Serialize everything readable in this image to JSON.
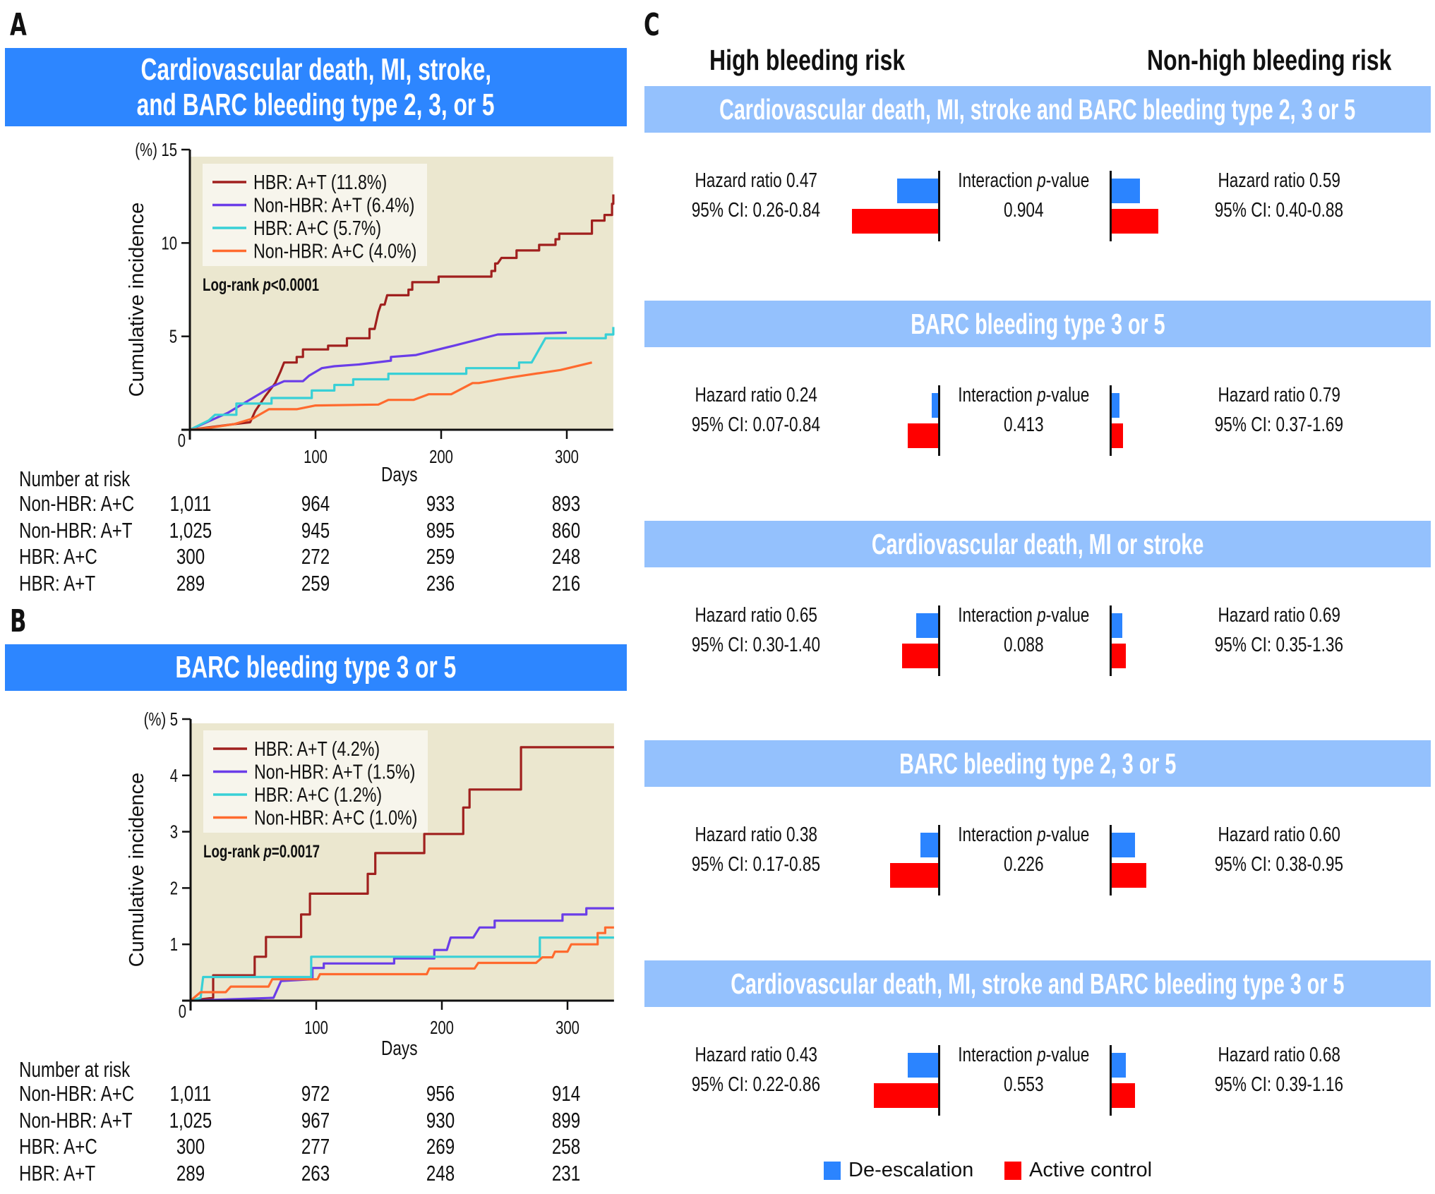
{
  "panels": {
    "a": {
      "letter": "A",
      "title_line1": "Cardiovascular death, MI, stroke,",
      "title_line2": "and BARC bleeding type 2, 3, or 5"
    },
    "b": {
      "letter": "B",
      "title_line1": "BARC bleeding type 3 or 5"
    },
    "c": {
      "letter": "C",
      "col_left": "High bleeding risk",
      "col_right": "Non-high bleeding risk"
    }
  },
  "risk_tables": {
    "a": {
      "title": "Number at risk",
      "days_label": "Days",
      "rows": [
        {
          "label": "Non-HBR: A+C",
          "values": [
            "1,011",
            "964",
            "933",
            "893"
          ]
        },
        {
          "label": "Non-HBR: A+T",
          "values": [
            "1,025",
            "945",
            "895",
            "860"
          ]
        },
        {
          "label": "HBR: A+C",
          "values": [
            "300",
            "272",
            "259",
            "248"
          ]
        },
        {
          "label": "HBR: A+T",
          "values": [
            "289",
            "259",
            "236",
            "216"
          ]
        }
      ]
    },
    "b": {
      "title": "Number at risk",
      "days_label": "Days",
      "rows": [
        {
          "label": "Non-HBR: A+C",
          "values": [
            "1,011",
            "972",
            "956",
            "914"
          ]
        },
        {
          "label": "Non-HBR: A+T",
          "values": [
            "1,025",
            "967",
            "930",
            "899"
          ]
        },
        {
          "label": "HBR: A+C",
          "values": [
            "300",
            "277",
            "269",
            "258"
          ]
        },
        {
          "label": "HBR: A+T",
          "values": [
            "289",
            "263",
            "248",
            "231"
          ]
        }
      ]
    }
  },
  "colors": {
    "title_band": "#2d86ff",
    "outcome_band": "#94c1fd",
    "plot_bg": "#ebe7cf",
    "de_escalation": "#2b84ff",
    "active_control": "#ff0000"
  },
  "forest": {
    "interaction_label": "Interaction p-value",
    "interaction_prefix": "Interaction ",
    "interaction_italic": "p",
    "interaction_suffix": "-value",
    "legend": [
      {
        "label": "De-escalation",
        "color": "#2b84ff"
      },
      {
        "label": "Active control",
        "color": "#ff0000"
      }
    ],
    "outcomes": [
      {
        "title": "Cardiovascular death, MI, stroke and BARC bleeding type 2, 3 or 5",
        "hbr": {
          "hr": "Hazard ratio 0.47",
          "ci": "95% CI: 0.26-0.84",
          "deesc_pct": 7.2,
          "active_pct": 15.0
        },
        "nonhbr": {
          "hr": "Hazard ratio 0.59",
          "ci": "95% CI: 0.40-0.88",
          "deesc_pct": 5.1,
          "active_pct": 8.3
        },
        "p": "0.904"
      },
      {
        "title": "BARC bleeding type 3 or 5",
        "hbr": {
          "hr": "Hazard ratio 0.24",
          "ci": "95% CI: 0.07-0.84",
          "deesc_pct": 1.2,
          "active_pct": 5.4
        },
        "nonhbr": {
          "hr": "Hazard ratio 0.79",
          "ci": "95% CI: 0.37-1.69",
          "deesc_pct": 1.6,
          "active_pct": 2.2
        },
        "p": "0.413"
      },
      {
        "title": "Cardiovascular death, MI or stroke",
        "hbr": {
          "hr": "Hazard ratio 0.65",
          "ci": "95% CI: 0.30-1.40",
          "deesc_pct": 3.9,
          "active_pct": 6.3
        },
        "nonhbr": {
          "hr": "Hazard ratio 0.69",
          "ci": "95% CI: 0.35-1.36",
          "deesc_pct": 2.1,
          "active_pct": 2.7
        },
        "p": "0.088"
      },
      {
        "title": "BARC bleeding type 2, 3 or 5",
        "hbr": {
          "hr": "Hazard ratio 0.38",
          "ci": "95% CI: 0.17-0.85",
          "deesc_pct": 3.2,
          "active_pct": 8.4
        },
        "nonhbr": {
          "hr": "Hazard ratio 0.60",
          "ci": "95% CI: 0.38-0.95",
          "deesc_pct": 4.3,
          "active_pct": 6.2
        },
        "p": "0.226"
      },
      {
        "title": "Cardiovascular death, MI, stroke and BARC bleeding type 3 or 5",
        "hbr": {
          "hr": "Hazard ratio 0.43",
          "ci": "95% CI: 0.22-0.86",
          "deesc_pct": 5.4,
          "active_pct": 11.2
        },
        "nonhbr": {
          "hr": "Hazard ratio 0.68",
          "ci": "95% CI: 0.39-1.16",
          "deesc_pct": 2.7,
          "active_pct": 4.3
        },
        "p": "0.553"
      }
    ]
  },
  "chart_data": [
    {
      "type": "line",
      "panel": "A",
      "title": "Cardiovascular death, MI, stroke, and BARC bleeding type 2, 3, or 5",
      "xlabel": "Days",
      "ylabel": "Cumulative incidence",
      "yunit_label": "(%)",
      "xlim": [
        0,
        337
      ],
      "ylim": [
        0,
        15
      ],
      "xticks": [
        100,
        200,
        300
      ],
      "yticks": [
        0,
        5,
        10,
        15
      ],
      "origin_label": "0",
      "grid": false,
      "legend_position": "top-left",
      "annotation": {
        "prefix": "Log-rank ",
        "italic": "p",
        "suffix": "<0.0001"
      },
      "series": [
        {
          "name": "HBR: A+T (11.8%)",
          "color": "#a0201e",
          "points": [
            [
              0,
              0
            ],
            [
              12,
              0.1
            ],
            [
              35,
              0.3
            ],
            [
              48,
              0.4
            ],
            [
              52,
              1.0
            ],
            [
              60,
              1.8
            ],
            [
              68,
              2.5
            ],
            [
              72,
              3.1
            ],
            [
              75,
              3.6
            ],
            [
              85,
              3.6
            ],
            [
              85,
              3.9
            ],
            [
              90,
              3.9
            ],
            [
              90,
              4.3
            ],
            [
              110,
              4.3
            ],
            [
              110,
              4.5
            ],
            [
              125,
              4.5
            ],
            [
              125,
              4.9
            ],
            [
              143,
              4.9
            ],
            [
              143,
              5.4
            ],
            [
              147,
              5.4
            ],
            [
              150,
              6.3
            ],
            [
              152,
              6.7
            ],
            [
              155,
              6.7
            ],
            [
              157,
              7.2
            ],
            [
              174,
              7.2
            ],
            [
              174,
              7.5
            ],
            [
              177,
              7.5
            ],
            [
              177,
              7.9
            ],
            [
              198,
              7.9
            ],
            [
              198,
              8.2
            ],
            [
              240,
              8.2
            ],
            [
              240,
              8.5
            ],
            [
              243,
              8.5
            ],
            [
              243,
              8.9
            ],
            [
              245,
              8.9
            ],
            [
              248,
              9.2
            ],
            [
              260,
              9.2
            ],
            [
              260,
              9.6
            ],
            [
              278,
              9.6
            ],
            [
              278,
              9.9
            ],
            [
              291,
              9.9
            ],
            [
              291,
              10.2
            ],
            [
              294,
              10.2
            ],
            [
              294,
              10.5
            ],
            [
              320,
              10.5
            ],
            [
              320,
              11.2
            ],
            [
              330,
              11.2
            ],
            [
              330,
              11.5
            ],
            [
              336,
              11.5
            ],
            [
              336,
              12.1
            ],
            [
              340,
              12.1
            ],
            [
              340,
              12.6
            ],
            [
              345,
              12.6
            ],
            [
              345,
              12.9
            ],
            [
              350,
              12.9
            ]
          ]
        },
        {
          "name": "Non-HBR: A+T (6.4%)",
          "color": "#6a3de8",
          "points": [
            [
              0,
              0
            ],
            [
              10,
              0.3
            ],
            [
              20,
              0.6
            ],
            [
              30,
              0.9
            ],
            [
              40,
              1.3
            ],
            [
              55,
              1.9
            ],
            [
              65,
              2.3
            ],
            [
              75,
              2.6
            ],
            [
              90,
              2.6
            ],
            [
              95,
              2.9
            ],
            [
              105,
              3.3
            ],
            [
              115,
              3.4
            ],
            [
              135,
              3.5
            ],
            [
              160,
              3.7
            ],
            [
              160,
              3.9
            ],
            [
              180,
              4.0
            ],
            [
              210,
              4.5
            ],
            [
              245,
              5.1
            ],
            [
              300,
              5.2
            ],
            [
              349,
              6.3
            ]
          ]
        },
        {
          "name": "HBR: A+C (5.7%)",
          "color": "#38d0d6",
          "points": [
            [
              0,
              0
            ],
            [
              15,
              0.5
            ],
            [
              20,
              0.8
            ],
            [
              37,
              0.8
            ],
            [
              37,
              1.4
            ],
            [
              65,
              1.4
            ],
            [
              65,
              1.7
            ],
            [
              97,
              1.7
            ],
            [
              97,
              2.1
            ],
            [
              115,
              2.1
            ],
            [
              115,
              2.4
            ],
            [
              130,
              2.4
            ],
            [
              130,
              2.7
            ],
            [
              158,
              2.7
            ],
            [
              158,
              3.0
            ],
            [
              220,
              3.0
            ],
            [
              220,
              3.3
            ],
            [
              262,
              3.3
            ],
            [
              262,
              3.6
            ],
            [
              272,
              3.6
            ],
            [
              283,
              4.9
            ],
            [
              331,
              4.9
            ],
            [
              331,
              5.1
            ],
            [
              338,
              5.1
            ],
            [
              338,
              5.5
            ],
            [
              349,
              5.5
            ]
          ]
        },
        {
          "name": "Non-HBR: A+C (4.0%)",
          "color": "#ff6a2e",
          "points": [
            [
              0,
              0
            ],
            [
              15,
              0.1
            ],
            [
              35,
              0.3
            ],
            [
              50,
              0.6
            ],
            [
              63,
              1.1
            ],
            [
              85,
              1.1
            ],
            [
              100,
              1.3
            ],
            [
              150,
              1.35
            ],
            [
              158,
              1.6
            ],
            [
              178,
              1.6
            ],
            [
              190,
              1.9
            ],
            [
              208,
              1.9
            ],
            [
              225,
              2.5
            ],
            [
              230,
              2.5
            ],
            [
              255,
              2.8
            ],
            [
              295,
              3.2
            ],
            [
              320,
              3.6
            ],
            [
              347,
              4.4
            ]
          ]
        }
      ]
    },
    {
      "type": "line",
      "panel": "B",
      "title": "BARC bleeding type 3 or 5",
      "xlabel": "Days",
      "ylabel": "Cumulative incidence",
      "yunit_label": "(%)",
      "xlim": [
        0,
        337
      ],
      "ylim": [
        0,
        5
      ],
      "xticks": [
        100,
        200,
        300
      ],
      "yticks": [
        0,
        1,
        2,
        3,
        4,
        5
      ],
      "origin_label": "0",
      "grid": false,
      "legend_position": "top-left",
      "annotation": {
        "prefix": "Log-rank ",
        "italic": "p",
        "suffix": "=0.0017"
      },
      "series": [
        {
          "name": "HBR: A+T (4.2%)",
          "color": "#a0201e",
          "points": [
            [
              0,
              0
            ],
            [
              18,
              0.05
            ],
            [
              18,
              0.45
            ],
            [
              51,
              0.45
            ],
            [
              51,
              0.78
            ],
            [
              60,
              0.78
            ],
            [
              60,
              1.13
            ],
            [
              88,
              1.13
            ],
            [
              88,
              1.53
            ],
            [
              95,
              1.53
            ],
            [
              95,
              1.9
            ],
            [
              141,
              1.9
            ],
            [
              141,
              2.25
            ],
            [
              147,
              2.25
            ],
            [
              147,
              2.62
            ],
            [
              186,
              2.62
            ],
            [
              186,
              2.96
            ],
            [
              217,
              2.96
            ],
            [
              217,
              3.43
            ],
            [
              222,
              3.43
            ],
            [
              222,
              3.75
            ],
            [
              263,
              3.75
            ],
            [
              263,
              4.5
            ],
            [
              337,
              4.5
            ]
          ]
        },
        {
          "name": "Non-HBR: A+T (1.5%)",
          "color": "#6a3de8",
          "points": [
            [
              0,
              0
            ],
            [
              66,
              0.05
            ],
            [
              72,
              0.35
            ],
            [
              97,
              0.38
            ],
            [
              97,
              0.58
            ],
            [
              106,
              0.58
            ],
            [
              106,
              0.66
            ],
            [
              162,
              0.66
            ],
            [
              162,
              0.75
            ],
            [
              194,
              0.75
            ],
            [
              194,
              0.9
            ],
            [
              204,
              0.9
            ],
            [
              207,
              1.12
            ],
            [
              225,
              1.12
            ],
            [
              230,
              1.3
            ],
            [
              242,
              1.3
            ],
            [
              242,
              1.42
            ],
            [
              296,
              1.42
            ],
            [
              296,
              1.53
            ],
            [
              315,
              1.53
            ],
            [
              315,
              1.64
            ],
            [
              337,
              1.64
            ]
          ]
        },
        {
          "name": "HBR: A+C (1.2%)",
          "color": "#38d0d6",
          "points": [
            [
              0,
              0
            ],
            [
              8,
              0.05
            ],
            [
              10,
              0.42
            ],
            [
              96,
              0.42
            ],
            [
              96,
              0.78
            ],
            [
              278,
              0.78
            ],
            [
              278,
              1.12
            ],
            [
              337,
              1.12
            ]
          ]
        },
        {
          "name": "Non-HBR: A+C (1.0%)",
          "color": "#ff6a2e",
          "points": [
            [
              0,
              0
            ],
            [
              8,
              0.15
            ],
            [
              28,
              0.15
            ],
            [
              32,
              0.25
            ],
            [
              62,
              0.25
            ],
            [
              65,
              0.38
            ],
            [
              101,
              0.38
            ],
            [
              103,
              0.47
            ],
            [
              188,
              0.47
            ],
            [
              190,
              0.57
            ],
            [
              226,
              0.57
            ],
            [
              229,
              0.67
            ],
            [
              275,
              0.67
            ],
            [
              280,
              0.77
            ],
            [
              288,
              0.77
            ],
            [
              290,
              0.87
            ],
            [
              300,
              0.87
            ],
            [
              303,
              1.0
            ],
            [
              324,
              1.0
            ],
            [
              324,
              1.2
            ],
            [
              330,
              1.2
            ],
            [
              330,
              1.3
            ],
            [
              337,
              1.3
            ]
          ]
        }
      ]
    }
  ]
}
